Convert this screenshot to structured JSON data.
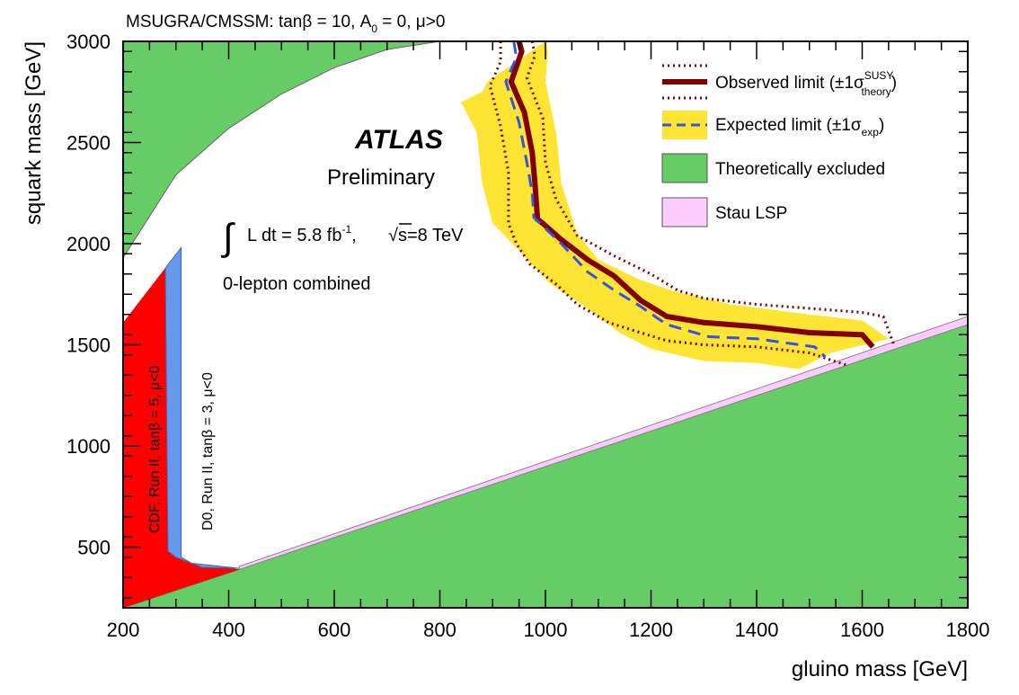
{
  "chart_data": {
    "type": "area",
    "title": "MSUGRA/CMSSM: tanβ = 10, A0 = 0, μ>0",
    "title_parts": {
      "prefix": "MSUGRA/CMSSM: tanβ = 10, A",
      "a_sub": "0",
      "suffix": " = 0, μ>0"
    },
    "xlabel": "gluino mass [GeV]",
    "ylabel": "squark mass [GeV]",
    "xlim": [
      200,
      1800
    ],
    "ylim": [
      200,
      3000
    ],
    "xticks": [
      "200",
      "400",
      "600",
      "800",
      "1000",
      "1200",
      "1400",
      "1600",
      "1800"
    ],
    "yticks": [
      "500",
      "1000",
      "1500",
      "2000",
      "2500",
      "3000"
    ],
    "annotations": {
      "atlas": "ATLAS",
      "preliminary": "Preliminary",
      "lumi": "L dt = 5.8 fb",
      "lumi_sup": "-1",
      "energy": "s=8 TeV",
      "analysis": "0-lepton combined",
      "cdf": "CDF, Run II, tanβ = 5, μ<0",
      "d0": "D0, Run II, tanβ = 3, μ<0"
    },
    "legend": {
      "placement": "top-right",
      "observed_label": "Observed limit (±1σ",
      "observed_sup": "SUSY",
      "observed_sub": "theory",
      "expected_label": "Expected limit (±1σ",
      "expected_sub": "exp",
      "theory_excluded_label": "Theoretically excluded",
      "stau_label": "Stau LSP"
    },
    "colors": {
      "theory_excluded": "#66cc66",
      "stau": "#ffccff",
      "expected_band": "#ffe533",
      "observed": "#800000",
      "expected": "#3355dd",
      "cdf": "#ff0000",
      "d0": "#6699ee"
    },
    "series": [
      {
        "name": "Observed limit",
        "x": [
          950,
          955,
          935,
          960,
          975,
          980,
          985,
          995,
          1030,
          1080,
          1130,
          1180,
          1230,
          1300,
          1400,
          1500,
          1600,
          1620
        ],
        "y": [
          3000,
          2950,
          2800,
          2650,
          2450,
          2300,
          2120,
          2100,
          2020,
          1920,
          1840,
          1720,
          1640,
          1610,
          1590,
          1560,
          1550,
          1490
        ]
      },
      {
        "name": "Expected limit",
        "x": [
          940,
          945,
          925,
          950,
          965,
          975,
          978,
          990,
          1030,
          1080,
          1130,
          1180,
          1230,
          1310,
          1400,
          1510,
          1530
        ],
        "y": [
          3000,
          2920,
          2800,
          2600,
          2400,
          2250,
          2130,
          2100,
          2000,
          1860,
          1770,
          1690,
          1600,
          1540,
          1530,
          1490,
          1440
        ]
      },
      {
        "name": "Observed +1σ theory",
        "x": [
          975,
          980,
          965,
          995,
          1000,
          1020,
          1060,
          1130,
          1200,
          1250,
          1300,
          1400,
          1500,
          1600,
          1640,
          1660
        ],
        "y": [
          3000,
          2930,
          2820,
          2620,
          2400,
          2220,
          2040,
          1940,
          1850,
          1770,
          1730,
          1700,
          1680,
          1660,
          1640,
          1500
        ]
      },
      {
        "name": "Observed -1σ theory",
        "x": [
          915,
          915,
          895,
          915,
          930,
          930,
          945,
          970,
          1020,
          1060,
          1120,
          1180,
          1230,
          1300,
          1400,
          1500,
          1570
        ],
        "y": [
          3000,
          2900,
          2780,
          2580,
          2350,
          2100,
          2000,
          1900,
          1800,
          1700,
          1610,
          1560,
          1520,
          1500,
          1490,
          1460,
          1400
        ]
      }
    ],
    "expected_band": {
      "upper": {
        "x": [
          1000,
          1005,
          1000,
          1020,
          1030,
          1060,
          1100,
          1180,
          1250,
          1350,
          1500,
          1600,
          1650
        ],
        "y": [
          3000,
          2950,
          2800,
          2550,
          2300,
          2050,
          1920,
          1820,
          1760,
          1700,
          1650,
          1620,
          1530
        ]
      },
      "lower": {
        "x": [
          890,
          880,
          840,
          870,
          880,
          900,
          945,
          1010,
          1080,
          1140,
          1200,
          1300,
          1400,
          1480,
          1540
        ],
        "y": [
          2800,
          2750,
          2700,
          2550,
          2300,
          2100,
          1980,
          1800,
          1680,
          1560,
          1480,
          1420,
          1410,
          1380,
          1460
        ]
      }
    },
    "theory_excluded_top": {
      "x": [
        200,
        300,
        400,
        500,
        600,
        700,
        800
      ],
      "y": [
        1930,
        2340,
        2570,
        2740,
        2870,
        2960,
        3000
      ]
    },
    "theory_excluded_bottom": {
      "x": [
        200,
        420,
        1800
      ],
      "y": [
        200,
        390,
        1600
      ]
    },
    "stau_lsp": {
      "x": [
        420,
        1800
      ],
      "y_low": [
        390,
        1600
      ],
      "y_high": [
        405,
        1640
      ]
    },
    "cdf_region": {
      "x": [
        200,
        280,
        285,
        300,
        330,
        420,
        200
      ],
      "y": [
        1610,
        1880,
        480,
        450,
        420,
        390,
        200
      ]
    },
    "d0_region": {
      "x": [
        280,
        310,
        310,
        330,
        350,
        420,
        330,
        300,
        285
      ],
      "y": [
        1880,
        1980,
        450,
        420,
        400,
        395,
        420,
        450,
        480
      ]
    }
  }
}
